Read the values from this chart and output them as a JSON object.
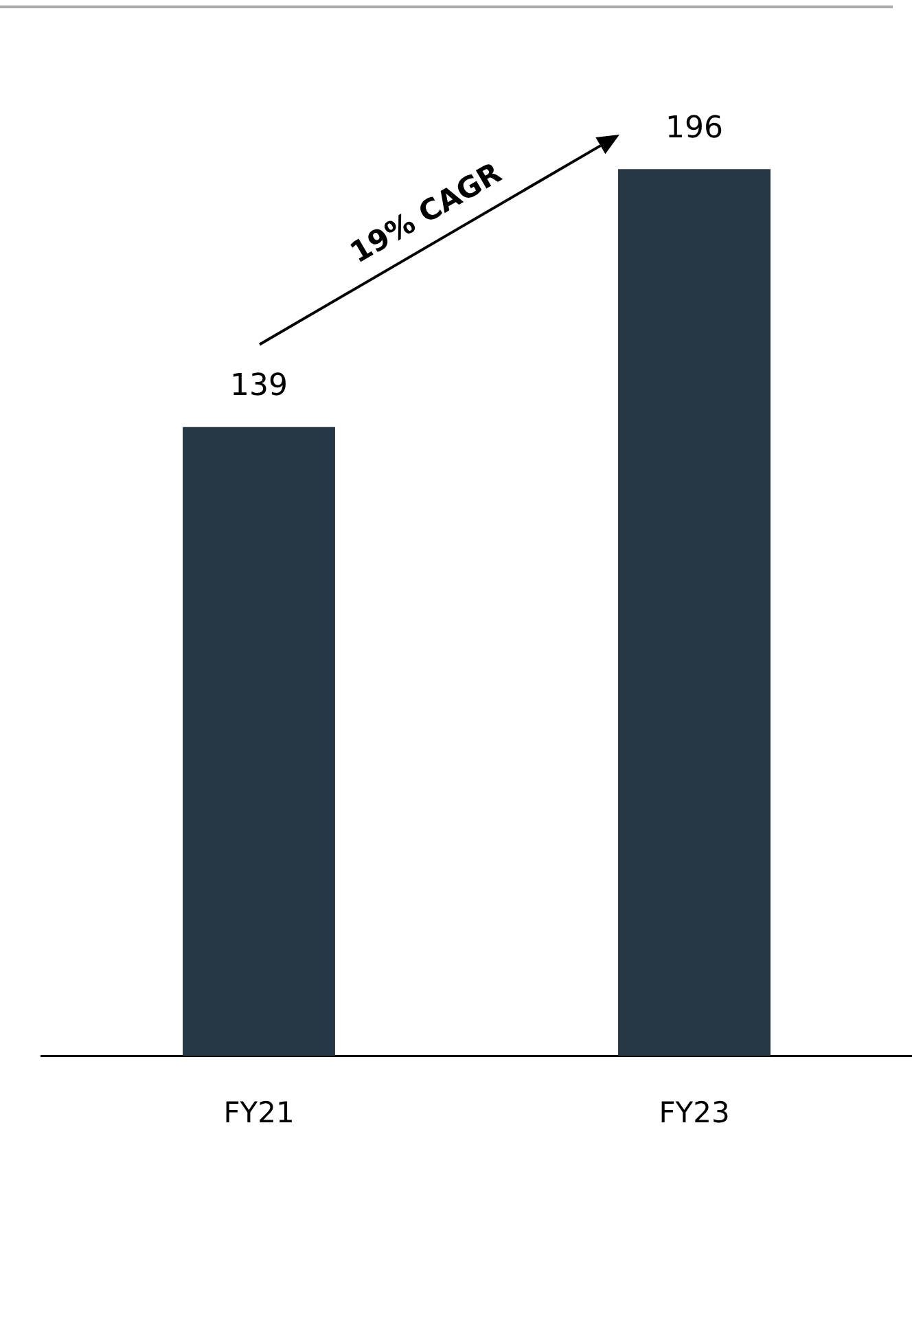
{
  "chart_data": {
    "type": "bar",
    "categories": [
      "FY21",
      "FY23"
    ],
    "values": [
      139,
      196
    ],
    "color": "#263746",
    "data_labels": true,
    "tick_labels": "x",
    "grid": false,
    "legend": false,
    "annotations": [
      "19% CAGR"
    ]
  }
}
